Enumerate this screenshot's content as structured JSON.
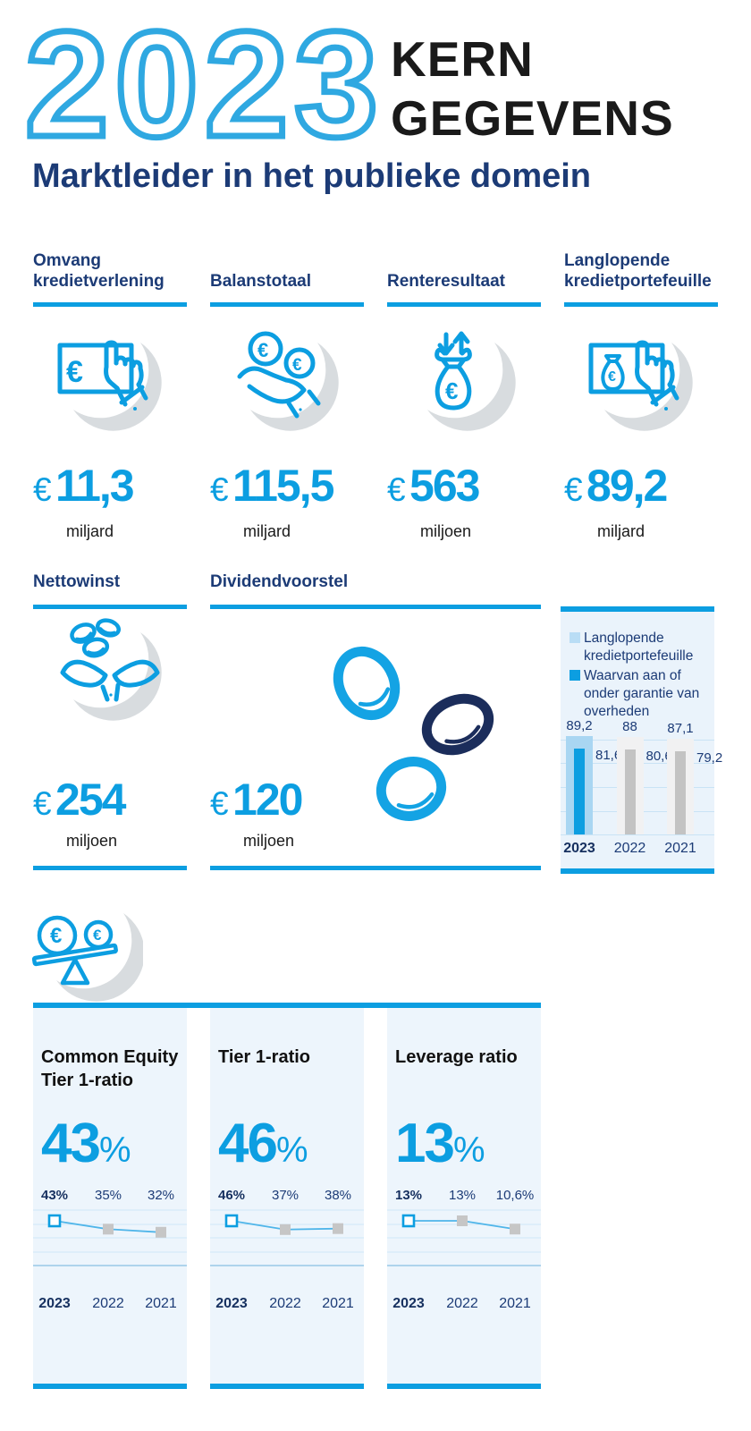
{
  "colors": {
    "accent": "#0c9ee1",
    "year_outline": "#2fa8e1",
    "navy": "#1c3b76",
    "black": "#1a1a1a",
    "coin_dark": "#1b2d5b",
    "panel_bg": "#eaf3fb",
    "bar_light_blue": "#a9d6f2",
    "legend_light_blue": "#b9ddf5",
    "bar_gray": "#f1f1f2",
    "bar_inner_gray": "#c3c3c3",
    "shadow_gray": "#d8dcdf"
  },
  "header": {
    "year": "2023",
    "title_line1": "KERN",
    "title_line2": "GEGEVENS",
    "subtitle": "Marktleider in het publieke domein"
  },
  "metrics": [
    {
      "label": "Omvang kredietverlening",
      "currency": "€",
      "value": "11,3",
      "unit": "miljard",
      "icon": "banknote-touch-hand-icon"
    },
    {
      "label": "Balanstotaal",
      "currency": "€",
      "value": "115,5",
      "unit": "miljard",
      "icon": "coins-in-hand-icon"
    },
    {
      "label": "Renteresultaat",
      "currency": "€",
      "value": "563",
      "unit": "miljoen",
      "icon": "moneybag-arrows-icon"
    },
    {
      "label": "Langlopende kredietportefeuille",
      "currency": "€",
      "value": "89,2",
      "unit": "miljard",
      "icon": "moneybag-card-hand-icon"
    },
    {
      "label": "Nettowinst",
      "currency": "€",
      "value": "254",
      "unit": "miljoen",
      "icon": "hands-catching-coins-icon"
    },
    {
      "label": "Dividendvoorstel",
      "currency": "€",
      "value": "120",
      "unit": "miljoen",
      "icon": "falling-coins-icon"
    }
  ],
  "chart_data": [
    {
      "type": "bar",
      "title": "",
      "legend": [
        "Langlopende kredietportefeuille",
        "Waarvan aan of onder garantie van overheden"
      ],
      "legend_position": "top",
      "grid": true,
      "categories": [
        "2023",
        "2022",
        "2021"
      ],
      "series": [
        {
          "name": "Langlopende kredietportefeuille",
          "values": [
            89.2,
            88,
            87.1
          ],
          "display": [
            "89,2",
            "88",
            "87,1"
          ]
        },
        {
          "name": "Waarvan aan of onder garantie van overheden",
          "values": [
            81.6,
            80.6,
            79.2
          ],
          "display": [
            "81,6",
            "80,6",
            "79,2"
          ]
        }
      ],
      "ylim": [
        0,
        95
      ]
    },
    {
      "type": "line",
      "title": "Common Equity Tier 1-ratio",
      "big_value": "43",
      "unit": "%",
      "categories": [
        "2023",
        "2022",
        "2021"
      ],
      "values": [
        43,
        35,
        32
      ],
      "labels": [
        "43%",
        "35%",
        "32%"
      ],
      "grid": true
    },
    {
      "type": "line",
      "title": "Tier 1-ratio",
      "big_value": "46",
      "unit": "%",
      "categories": [
        "2023",
        "2022",
        "2021"
      ],
      "values": [
        46,
        37,
        38
      ],
      "labels": [
        "46%",
        "37%",
        "38%"
      ],
      "grid": true
    },
    {
      "type": "line",
      "title": "Leverage ratio",
      "big_value": "13",
      "unit": "%",
      "categories": [
        "2023",
        "2022",
        "2021"
      ],
      "values": [
        13,
        13,
        10.6
      ],
      "labels": [
        "13%",
        "13%",
        "10,6%"
      ],
      "grid": true
    }
  ]
}
